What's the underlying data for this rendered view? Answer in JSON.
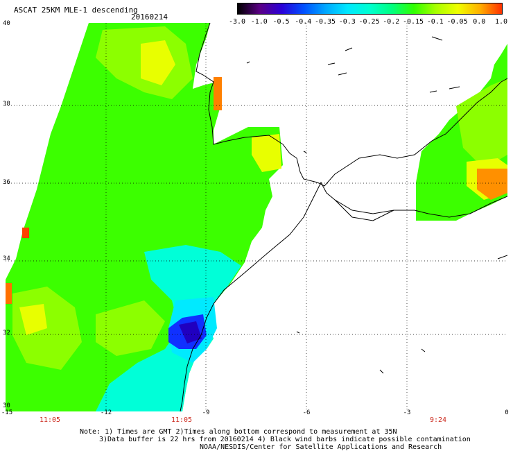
{
  "title": "ASCAT 25KM MLE-1 descending",
  "date": "20160214",
  "colorbar": {
    "labels": [
      "-3.0",
      "-1.0",
      "-0.5",
      "-0.4",
      "-0.35",
      "-0.3",
      "-0.25",
      "-0.2",
      "-0.15",
      "-0.1",
      "-0.05",
      "0.0",
      "1.0"
    ],
    "colors": [
      "#000000",
      "#5a0085",
      "#2a00d8",
      "#0050ff",
      "#00a8ff",
      "#00e8ff",
      "#00ffd0",
      "#00ff80",
      "#30ff00",
      "#a8ff00",
      "#f0ff00",
      "#ffb000",
      "#ff3000"
    ]
  },
  "axes": {
    "lat_ticks": [
      "40",
      "38",
      "36",
      "34",
      "32",
      "30"
    ],
    "lon_ticks": [
      "-15",
      "-12",
      "-9",
      "-6",
      "-3",
      "0"
    ],
    "grid": "dotted"
  },
  "times": [
    "11:05",
    "11:05",
    "9:24"
  ],
  "notes": [
    "Note: 1) Times are GMT 2)Times along bottom correspond to measurement at 35N",
    "3)Data buffer is 22 hrs from 20160214 4) Black wind barbs indicate possible contamination",
    "NOAA/NESDIS/Center for Satellite Applications and Research"
  ],
  "palette": {
    "green": "#3cff00",
    "light_green": "#90ff00",
    "cyan": "#00ffe0",
    "aqua": "#00f0ff",
    "blue": "#1030ff",
    "dark_blue": "#2000c0",
    "yellow": "#e8ff00",
    "orange": "#ff9000",
    "red": "#ff4000"
  }
}
